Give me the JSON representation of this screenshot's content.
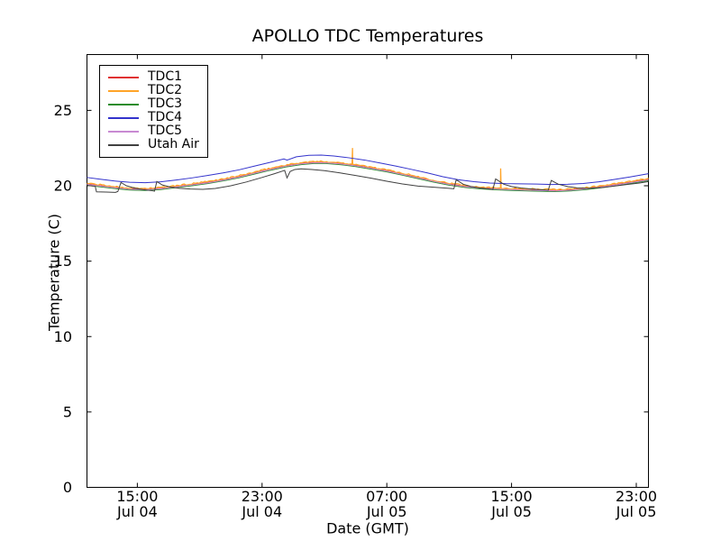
{
  "chart_data": {
    "type": "line",
    "title": "APOLLO TDC Temperatures",
    "xlabel": "Date (GMT)",
    "ylabel": "Temperature (C)",
    "x_unit": "hours since Jul 04 00:00 GMT",
    "xlim": [
      11.77,
      47.78
    ],
    "ylim": [
      0,
      28.7
    ],
    "grid": false,
    "legend_position": "upper left",
    "frame_color": "#000000",
    "y_ticks": [
      0,
      5,
      10,
      15,
      20,
      25
    ],
    "x_ticks": [
      {
        "value": 15,
        "time": "15:00",
        "date": "Jul 04"
      },
      {
        "value": 23,
        "time": "23:00",
        "date": "Jul 04"
      },
      {
        "value": 31,
        "time": "07:00",
        "date": "Jul 05"
      },
      {
        "value": 39,
        "time": "15:00",
        "date": "Jul 05"
      },
      {
        "value": 47,
        "time": "23:00",
        "date": "Jul 05"
      }
    ],
    "series": [
      {
        "name": "TDC1",
        "color": "#e03232",
        "width": 1,
        "points": [
          [
            11.77,
            20.12
          ],
          [
            12.5,
            20.02
          ],
          [
            13.5,
            19.9
          ],
          [
            14.5,
            19.8
          ],
          [
            15.5,
            19.77
          ],
          [
            16.5,
            19.83
          ],
          [
            17.5,
            19.95
          ],
          [
            18.5,
            20.08
          ],
          [
            19.5,
            20.22
          ],
          [
            20.5,
            20.4
          ],
          [
            21.5,
            20.6
          ],
          [
            22.5,
            20.85
          ],
          [
            23.5,
            21.1
          ],
          [
            24.5,
            21.32
          ],
          [
            25.5,
            21.48
          ],
          [
            26.3,
            21.55
          ],
          [
            27.1,
            21.55
          ],
          [
            28.0,
            21.48
          ],
          [
            29.0,
            21.35
          ],
          [
            30.0,
            21.18
          ],
          [
            31.0,
            21.0
          ],
          [
            32.0,
            20.78
          ],
          [
            33.0,
            20.55
          ],
          [
            34.0,
            20.32
          ],
          [
            35.0,
            20.12
          ],
          [
            36.0,
            19.97
          ],
          [
            37.0,
            19.87
          ],
          [
            38.0,
            19.81
          ],
          [
            39.0,
            19.77
          ],
          [
            40.0,
            19.74
          ],
          [
            41.0,
            19.71
          ],
          [
            41.8,
            19.69
          ],
          [
            42.8,
            19.74
          ],
          [
            43.8,
            19.83
          ],
          [
            44.8,
            19.95
          ],
          [
            45.8,
            20.1
          ],
          [
            46.8,
            20.26
          ],
          [
            47.78,
            20.42
          ]
        ]
      },
      {
        "name": "TDC2",
        "color": "#ffa428",
        "width": 1.3,
        "base": "TDC1",
        "offset": 0.05,
        "noise": 0.05,
        "noise_step": 0.12,
        "spikes": [
          {
            "t": 28.8,
            "top": 22.5
          },
          {
            "t": 38.3,
            "top": 21.15
          }
        ]
      },
      {
        "name": "TDC3",
        "color": "#2c8c2c",
        "width": 1,
        "base": "TDC1",
        "offset": -0.08
      },
      {
        "name": "TDC4",
        "color": "#3333cc",
        "width": 1,
        "points": [
          [
            11.77,
            20.55
          ],
          [
            12.5,
            20.45
          ],
          [
            13.5,
            20.32
          ],
          [
            14.5,
            20.23
          ],
          [
            15.5,
            20.2
          ],
          [
            16.5,
            20.26
          ],
          [
            17.5,
            20.38
          ],
          [
            18.5,
            20.52
          ],
          [
            19.5,
            20.68
          ],
          [
            20.5,
            20.85
          ],
          [
            21.5,
            21.05
          ],
          [
            22.5,
            21.3
          ],
          [
            23.5,
            21.55
          ],
          [
            24.4,
            21.78
          ],
          [
            24.6,
            21.7
          ],
          [
            25.2,
            21.92
          ],
          [
            26.0,
            22.02
          ],
          [
            26.8,
            22.03
          ],
          [
            27.6,
            21.97
          ],
          [
            28.6,
            21.85
          ],
          [
            29.6,
            21.7
          ],
          [
            30.6,
            21.5
          ],
          [
            31.6,
            21.3
          ],
          [
            32.6,
            21.08
          ],
          [
            33.6,
            20.85
          ],
          [
            34.6,
            20.6
          ],
          [
            35.6,
            20.4
          ],
          [
            36.6,
            20.27
          ],
          [
            37.6,
            20.18
          ],
          [
            38.6,
            20.14
          ],
          [
            39.6,
            20.13
          ],
          [
            40.6,
            20.11
          ],
          [
            41.6,
            20.08
          ],
          [
            42.6,
            20.1
          ],
          [
            43.6,
            20.15
          ],
          [
            44.6,
            20.26
          ],
          [
            45.6,
            20.42
          ],
          [
            46.6,
            20.58
          ],
          [
            47.78,
            20.8
          ]
        ]
      },
      {
        "name": "TDC5",
        "color": "#c88ad2",
        "width": 1,
        "base": "TDC1",
        "offset": -0.03
      },
      {
        "name": "Utah Air",
        "color": "#404040",
        "width": 1,
        "points": [
          [
            11.77,
            20.02
          ],
          [
            12.3,
            19.96
          ],
          [
            12.38,
            19.6
          ],
          [
            13.0,
            19.58
          ],
          [
            13.6,
            19.56
          ],
          [
            13.75,
            19.62
          ],
          [
            13.95,
            20.22
          ],
          [
            14.3,
            20.0
          ],
          [
            14.8,
            19.85
          ],
          [
            15.4,
            19.74
          ],
          [
            16.0,
            19.66
          ],
          [
            16.1,
            19.64
          ],
          [
            16.25,
            20.28
          ],
          [
            16.6,
            20.05
          ],
          [
            17.1,
            19.92
          ],
          [
            17.7,
            19.83
          ],
          [
            18.4,
            19.78
          ],
          [
            19.2,
            19.76
          ],
          [
            20.0,
            19.82
          ],
          [
            21.0,
            20.0
          ],
          [
            22.0,
            20.25
          ],
          [
            23.0,
            20.55
          ],
          [
            23.8,
            20.8
          ],
          [
            24.45,
            21.02
          ],
          [
            24.6,
            20.52
          ],
          [
            24.8,
            20.95
          ],
          [
            25.1,
            21.08
          ],
          [
            25.5,
            21.12
          ],
          [
            26.2,
            21.08
          ],
          [
            27.0,
            21.0
          ],
          [
            28.0,
            20.85
          ],
          [
            29.0,
            20.68
          ],
          [
            30.0,
            20.5
          ],
          [
            31.0,
            20.3
          ],
          [
            32.0,
            20.12
          ],
          [
            33.0,
            19.98
          ],
          [
            34.0,
            19.9
          ],
          [
            34.8,
            19.84
          ],
          [
            35.3,
            19.8
          ],
          [
            35.45,
            20.4
          ],
          [
            35.9,
            20.1
          ],
          [
            36.4,
            19.95
          ],
          [
            37.0,
            19.85
          ],
          [
            37.6,
            19.78
          ],
          [
            37.8,
            19.75
          ],
          [
            37.98,
            20.45
          ],
          [
            38.5,
            20.1
          ],
          [
            39.0,
            19.95
          ],
          [
            39.6,
            19.85
          ],
          [
            40.3,
            19.78
          ],
          [
            41.0,
            19.73
          ],
          [
            41.35,
            19.7
          ],
          [
            41.55,
            20.35
          ],
          [
            42.0,
            20.1
          ],
          [
            42.6,
            19.95
          ],
          [
            43.2,
            19.86
          ],
          [
            43.9,
            19.83
          ],
          [
            44.8,
            19.88
          ],
          [
            45.6,
            19.98
          ],
          [
            46.4,
            20.08
          ],
          [
            47.2,
            20.18
          ],
          [
            47.78,
            20.28
          ]
        ]
      }
    ]
  }
}
